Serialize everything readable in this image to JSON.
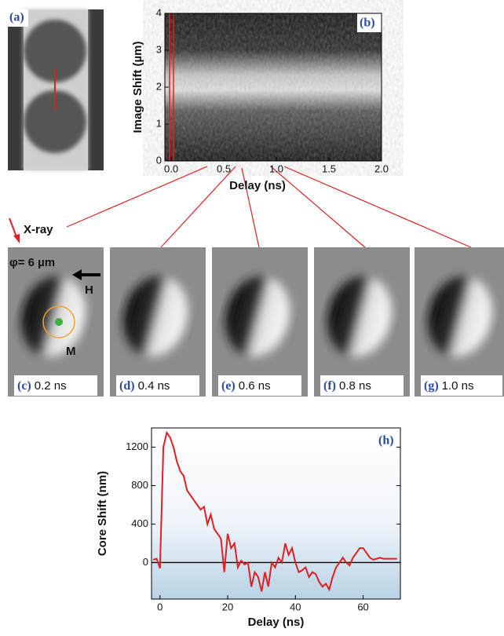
{
  "panels_top": {
    "a": "(a)"
  },
  "chart_data": [
    {
      "type": "heatmap",
      "panel_label": "(b)",
      "xlabel": "Delay (ns)",
      "ylabel": "Image Shift (µm)",
      "xlim": [
        -0.06,
        2.0
      ],
      "ylim": [
        0,
        4
      ],
      "xticks": [
        {
          "value": 0,
          "label": "0.0"
        },
        0.5,
        {
          "value": 1,
          "label": "1.0"
        },
        1.5,
        {
          "value": 2,
          "label": "2.0"
        }
      ],
      "yticks": [
        0,
        1,
        2,
        3,
        4
      ]
    },
    {
      "type": "line",
      "panel_label": "(h)",
      "xlabel": "Delay (ns)",
      "ylabel": "Core Shift (nm)",
      "xlim": [
        -2.5,
        71
      ],
      "ylim": [
        -380,
        1400
      ],
      "xticks": [
        0,
        20,
        40,
        60
      ],
      "yticks": [
        0,
        400,
        800,
        1200
      ],
      "series": [
        {
          "color": "#e02020",
          "x": [
            -2,
            -1,
            0,
            1,
            2,
            3,
            4,
            5,
            6,
            7,
            8,
            9,
            10,
            11,
            12,
            13,
            14,
            15,
            16,
            17,
            18,
            19,
            20,
            21,
            22,
            23,
            24,
            25,
            26,
            27,
            28,
            29,
            30,
            31,
            32,
            33,
            34,
            35,
            36,
            37,
            38,
            39,
            40,
            41,
            42,
            43,
            44,
            45,
            46,
            47,
            48,
            49,
            50,
            51,
            52,
            53,
            54,
            55,
            56,
            57,
            58,
            59,
            60,
            61,
            62,
            63,
            64,
            65,
            66,
            67,
            68,
            69,
            70
          ],
          "values": [
            30,
            40,
            -60,
            1200,
            1350,
            1300,
            1200,
            1050,
            950,
            900,
            750,
            700,
            650,
            600,
            550,
            580,
            400,
            500,
            350,
            300,
            250,
            -100,
            300,
            150,
            200,
            -50,
            20,
            -20,
            0,
            -250,
            -100,
            -150,
            -300,
            -100,
            -250,
            0,
            -50,
            50,
            0,
            200,
            80,
            150,
            0,
            -100,
            -80,
            -50,
            -150,
            -100,
            -120,
            -200,
            -250,
            -220,
            -280,
            -150,
            -50,
            0,
            50,
            0,
            -30,
            50,
            100,
            150,
            150,
            100,
            50,
            30,
            40,
            50,
            40,
            40,
            40,
            40,
            40
          ]
        }
      ]
    }
  ],
  "panels": [
    {
      "label": "(c)",
      "caption": "0.2 ns"
    },
    {
      "label": "(d)",
      "caption": "0.4 ns"
    },
    {
      "label": "(e)",
      "caption": "0.6 ns"
    },
    {
      "label": "(f)",
      "caption": "0.8 ns"
    },
    {
      "label": "(g)",
      "caption": "1.0 ns"
    }
  ],
  "annotations": {
    "xray": "X-ray",
    "phi": "φ= 6 µm",
    "h": "H",
    "m": "M"
  }
}
